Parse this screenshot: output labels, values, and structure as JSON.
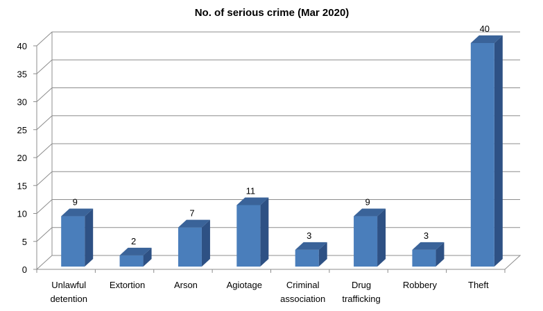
{
  "chart_data": {
    "type": "bar",
    "title": "No. of serious crime (Mar 2020)",
    "categories": [
      [
        "Unlawful",
        "detention"
      ],
      [
        "Extortion"
      ],
      [
        "Arson"
      ],
      [
        "Agiotage"
      ],
      [
        "Criminal",
        "association"
      ],
      [
        "Drug",
        "trafficking"
      ],
      [
        "Robbery"
      ],
      [
        "Theft"
      ]
    ],
    "values": [
      9,
      2,
      7,
      11,
      3,
      9,
      3,
      40
    ],
    "ylim": [
      0,
      40
    ],
    "yticks": [
      0,
      5,
      10,
      15,
      20,
      25,
      30,
      35,
      40
    ],
    "xlabel": "",
    "ylabel": "",
    "grid": true,
    "legend": "none",
    "style": "3d-column",
    "colors": {
      "bar_front": "#4a7ebb",
      "bar_side": "#2e5184",
      "bar_top": "#3a6399",
      "grid": "#8c8c8c"
    }
  }
}
